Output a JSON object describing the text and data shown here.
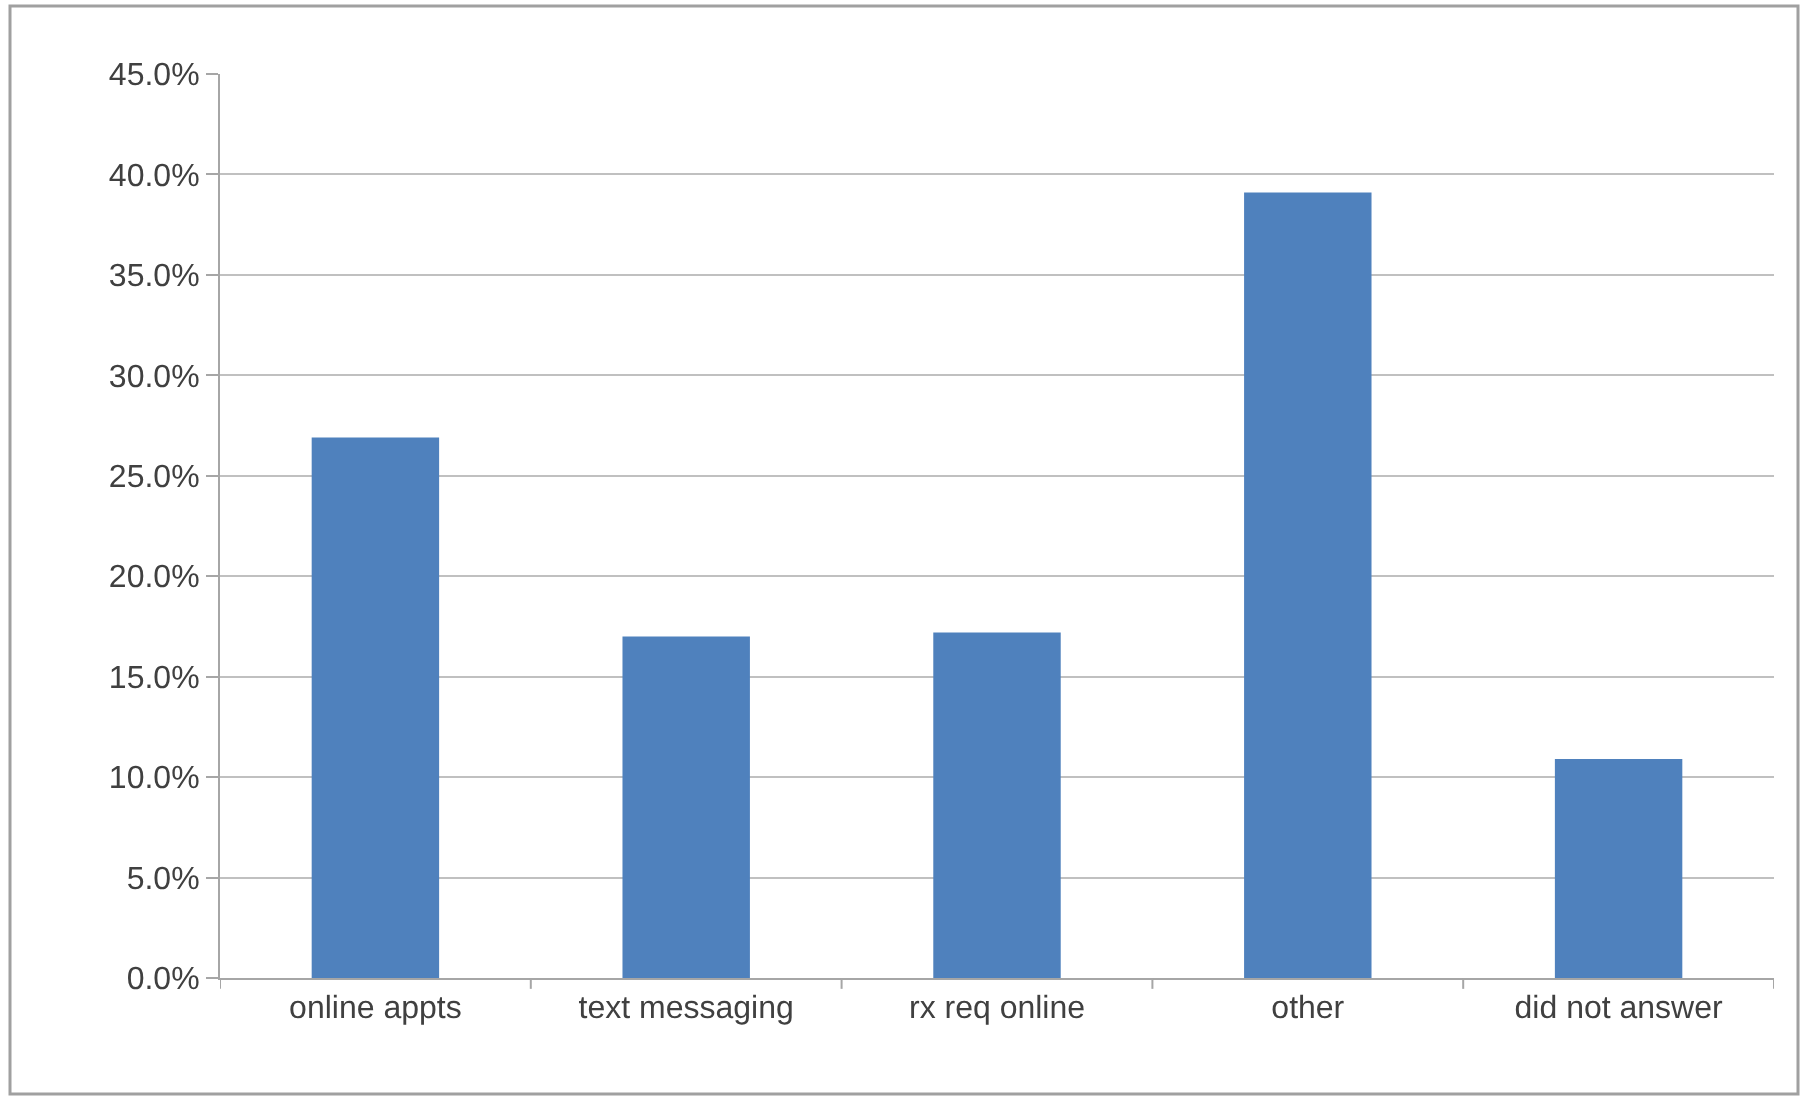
{
  "chart_data": {
    "type": "bar",
    "categories": [
      "online appts",
      "text messaging",
      "rx req online",
      "other",
      "did not answer"
    ],
    "values": [
      26.9,
      17.0,
      17.2,
      39.1,
      10.9
    ],
    "color": "#4f81bd",
    "ylim": [
      0,
      45
    ],
    "yticks": [
      {
        "value": 0,
        "label": "0.0%"
      },
      {
        "value": 5,
        "label": "5.0%"
      },
      {
        "value": 10,
        "label": "10.0%"
      },
      {
        "value": 15,
        "label": "15.0%"
      },
      {
        "value": 20,
        "label": "20.0%"
      },
      {
        "value": 25,
        "label": "25.0%"
      },
      {
        "value": 30,
        "label": "30.0%"
      },
      {
        "value": 35,
        "label": "35.0%"
      },
      {
        "value": 40,
        "label": "40.0%"
      },
      {
        "value": 45,
        "label": "45.0%"
      }
    ],
    "grid": "y"
  }
}
